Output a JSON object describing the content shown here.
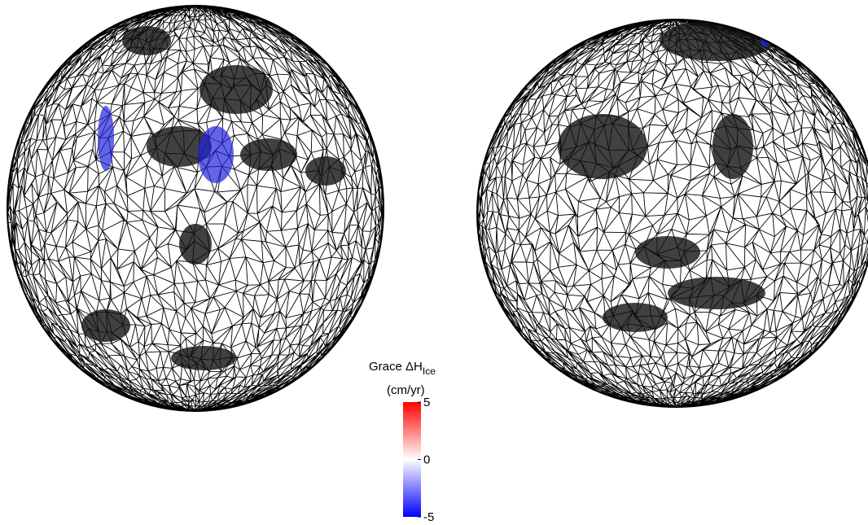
{
  "colorbar": {
    "title": "Grace ΔH",
    "title_subscript": "Ice",
    "unit": "(cm/yr)",
    "lim": [
      -5,
      5
    ],
    "ticks": [
      5,
      0,
      -5
    ],
    "colors": [
      "#0000ff",
      "#ffffff",
      "#ff0000"
    ]
  }
}
